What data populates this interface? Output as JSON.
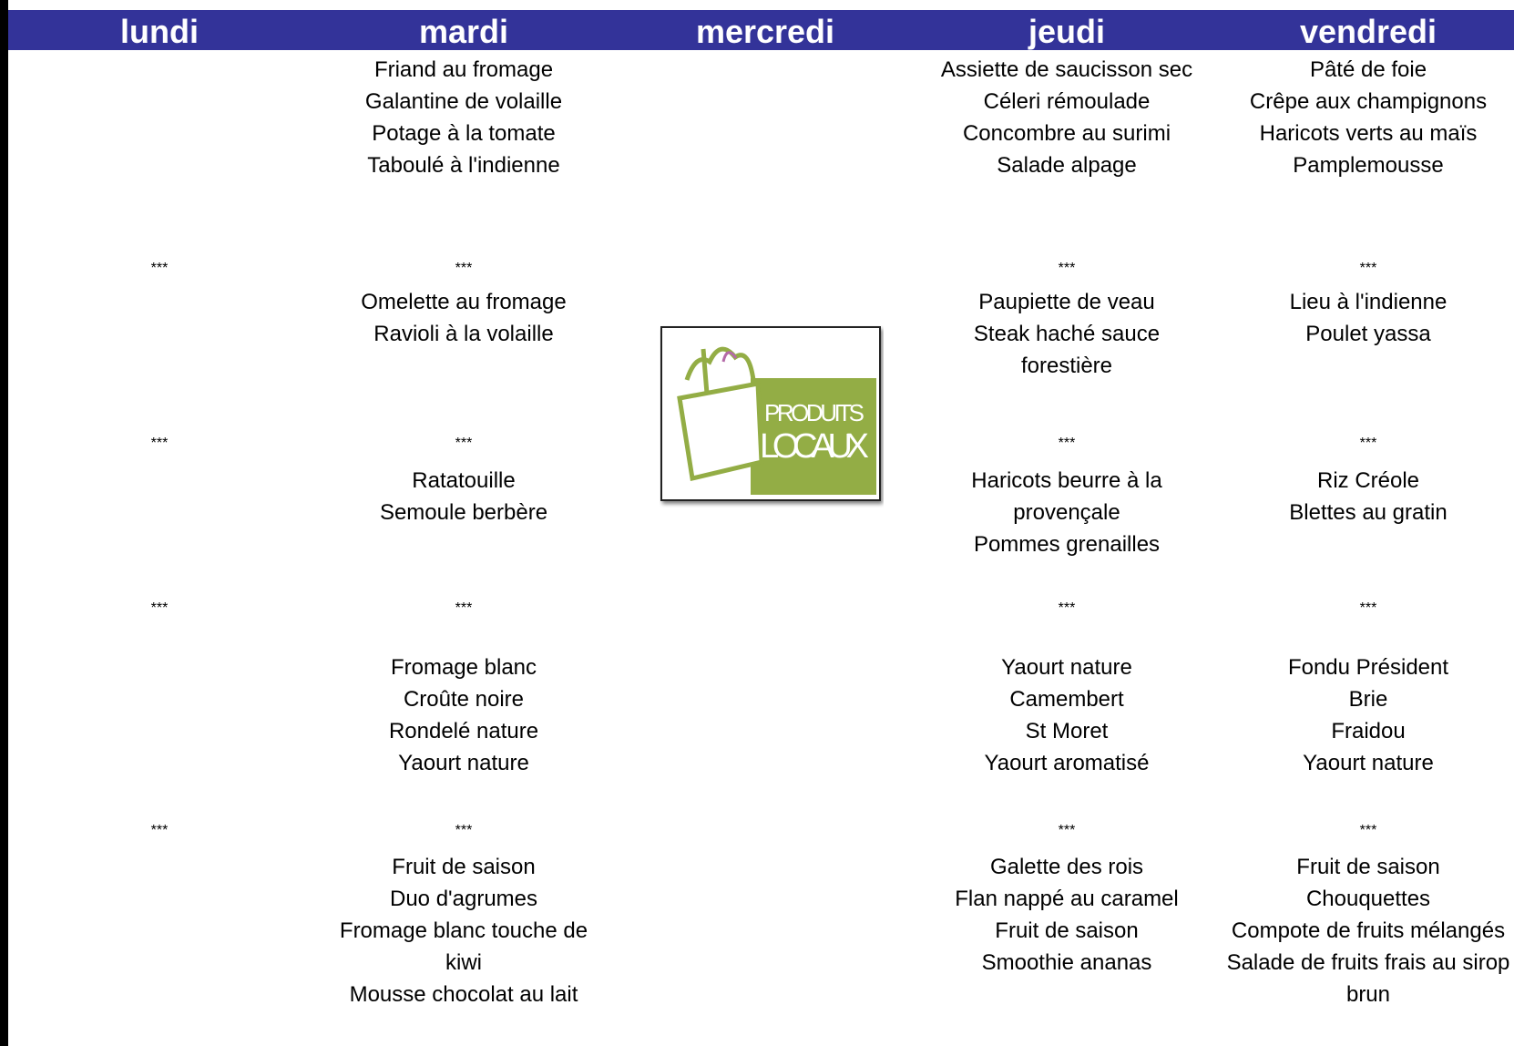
{
  "columns": [
    {
      "day": "lundi",
      "blocks": [
        [],
        "***",
        [],
        "***",
        [],
        "***",
        [],
        "***",
        []
      ]
    },
    {
      "day": "mardi",
      "blocks": [
        [
          "Friand au fromage",
          "Galantine de volaille",
          "Potage à la tomate",
          "Taboulé à l'indienne"
        ],
        "***",
        [
          "Omelette au fromage",
          "Ravioli à la volaille"
        ],
        "***",
        [
          "Ratatouille",
          "Semoule berbère"
        ],
        "***",
        [
          "Fromage blanc",
          "Croûte noire",
          "Rondelé nature",
          "Yaourt nature"
        ],
        "***",
        [
          "Fruit de saison",
          "Duo d'agrumes",
          "Fromage blanc touche de kiwi",
          "Mousse chocolat au lait"
        ]
      ]
    },
    {
      "day": "mercredi",
      "blocks": []
    },
    {
      "day": "jeudi",
      "blocks": [
        [
          "Assiette de saucisson sec",
          "Céleri rémoulade",
          "Concombre au surimi",
          "Salade alpage"
        ],
        "***",
        [
          "Paupiette de veau",
          "Steak haché sauce forestière"
        ],
        "***",
        [
          "Haricots beurre à la provençale",
          "Pommes grenailles"
        ],
        "***",
        [
          "Yaourt nature",
          "Camembert",
          "St Moret",
          "Yaourt aromatisé"
        ],
        "***",
        [
          "Galette des rois",
          "Flan nappé au caramel",
          "Fruit de saison",
          "Smoothie ananas"
        ]
      ]
    },
    {
      "day": "vendredi",
      "blocks": [
        [
          "Pâté de foie",
          "Crêpe aux champignons",
          "Haricots verts au maïs",
          "Pamplemousse"
        ],
        "***",
        [
          "Lieu à l'indienne",
          "Poulet yassa"
        ],
        "***",
        [
          "Riz Créole",
          "Blettes au gratin"
        ],
        "***",
        [
          "Fondu Président",
          "Brie",
          "Fraidou",
          "Yaourt nature"
        ],
        "***",
        [
          "Fruit de saison",
          "Chouquettes",
          "Compote de fruits mélangés",
          "Salade de fruits frais au sirop brun"
        ]
      ]
    }
  ],
  "logo": {
    "line1": "PRODUITS",
    "line2": "LOCAUX"
  }
}
